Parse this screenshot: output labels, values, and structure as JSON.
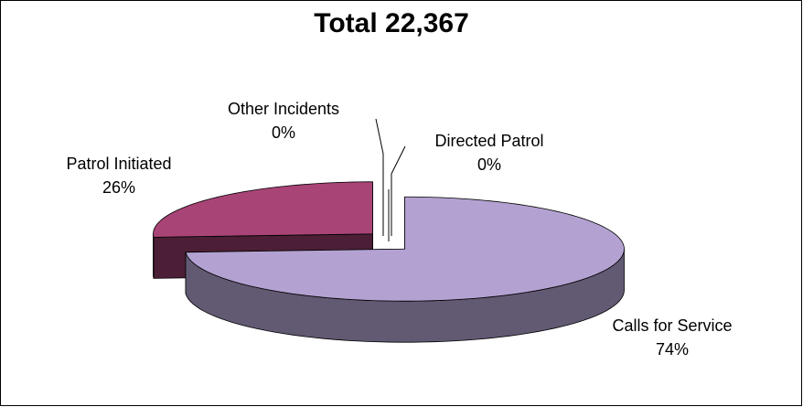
{
  "chart_data": {
    "type": "pie",
    "title": "Total 22,367",
    "categories": [
      "Calls for Service",
      "Patrol Initiated",
      "Other Incidents",
      "Directed Patrol"
    ],
    "values": [
      74,
      26,
      0,
      0
    ],
    "value_labels": [
      "74%",
      "26%",
      "0%",
      "0%"
    ],
    "colors": [
      "#b3a2d1",
      "#a94477",
      "#8080c0",
      "#a0a0d0"
    ]
  }
}
